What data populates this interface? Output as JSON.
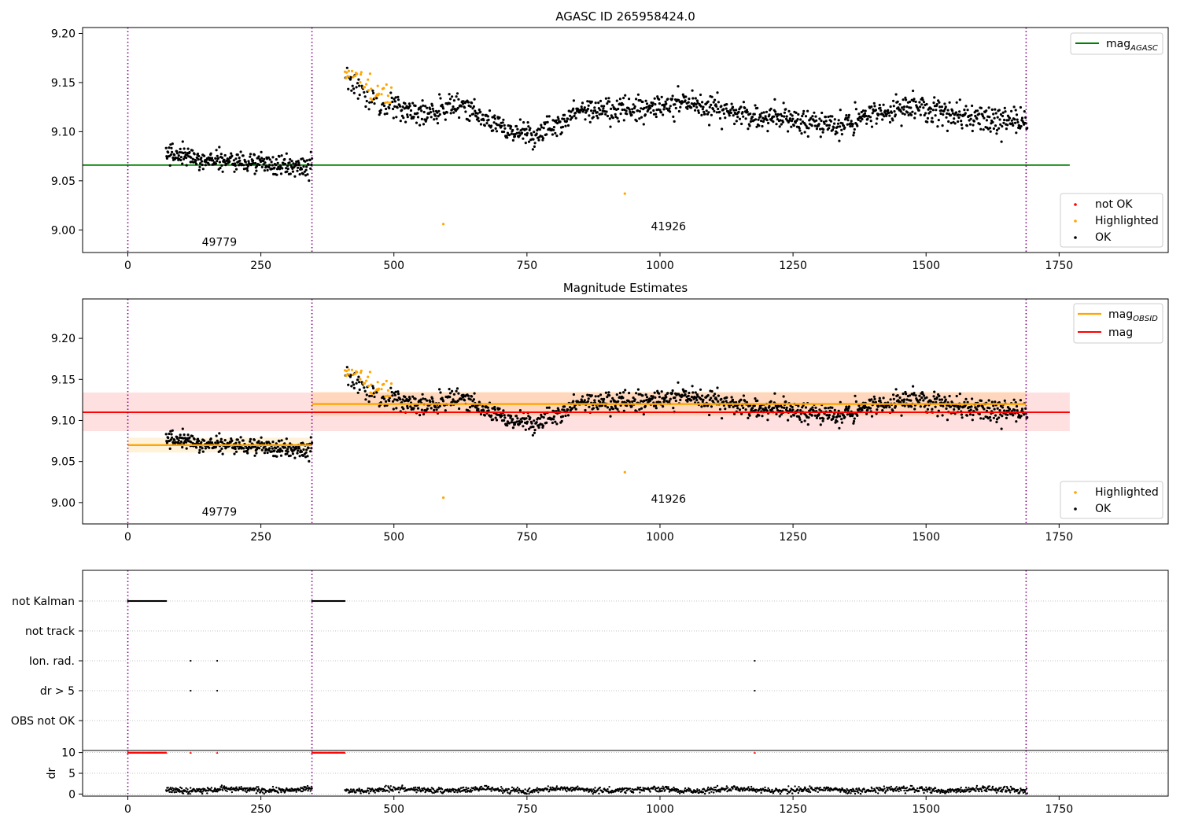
{
  "colors": {
    "ok": "#000000",
    "highlighted": "#ffa500",
    "not_ok": "#ff0000",
    "agasc_line": "#008000",
    "obsid_line": "#ffa500",
    "mag_line": "#ff0000",
    "boundary": "#800080",
    "grid": "#b0b0b0"
  },
  "chart_data": [
    {
      "id": "agasc",
      "type": "scatter",
      "title": "AGASC ID 265958424.0",
      "xlim": [
        -85,
        1955
      ],
      "ylim": [
        8.977,
        9.206
      ],
      "xticks": [
        0,
        250,
        500,
        750,
        1000,
        1250,
        1500,
        1750
      ],
      "yticks": [
        9.0,
        9.05,
        9.1,
        9.15,
        9.2
      ],
      "ytick_labels": [
        "9.00",
        "9.05",
        "9.10",
        "9.15",
        "9.20"
      ],
      "boundaries": [
        0,
        346,
        1688
      ],
      "obsid_labels": [
        {
          "text": "49779",
          "x": 172,
          "y": 8.984
        },
        {
          "text": "41926",
          "x": 1016,
          "y": 9.0
        }
      ],
      "agasc_mag": {
        "value": 9.066,
        "xrange": [
          -85,
          1770
        ]
      },
      "segments": [
        {
          "x0": 72,
          "x1": 346,
          "n": 300,
          "base": [
            9.078,
            9.072,
            9.07,
            9.066,
            9.064
          ],
          "noise": 0.009
        },
        {
          "x0": 408,
          "x1": 1690,
          "n": 1250,
          "base": [
            9.15,
            9.128,
            9.118,
            9.128,
            9.108,
            9.094,
            9.12,
            9.125,
            9.122,
            9.13,
            9.122,
            9.115,
            9.11,
            9.106,
            9.118,
            9.126,
            9.118,
            9.112,
            9.108
          ],
          "noise": 0.011
        }
      ],
      "highlighted_region": {
        "x0": 408,
        "x1": 496,
        "offset": 0.01
      },
      "extra_points": [
        {
          "x": 593,
          "y": 9.006,
          "status": "Highlighted"
        },
        {
          "x": 934,
          "y": 9.037,
          "status": "Highlighted"
        }
      ],
      "legends": [
        {
          "position": "upper-right",
          "entries": [
            {
              "label": "mag",
              "sub": "AGASC",
              "kind": "line",
              "color_key": "agasc_line"
            }
          ]
        },
        {
          "position": "lower-right",
          "entries": [
            {
              "label": "not OK",
              "kind": "dot",
              "color_key": "not_ok"
            },
            {
              "label": "Highlighted",
              "kind": "dot",
              "color_key": "highlighted"
            },
            {
              "label": "OK",
              "kind": "dot",
              "color_key": "ok"
            }
          ]
        }
      ]
    },
    {
      "id": "estimates",
      "type": "scatter",
      "title": "Magnitude Estimates",
      "xlim": [
        -85,
        1955
      ],
      "ylim": [
        8.974,
        9.248
      ],
      "xticks": [
        0,
        250,
        500,
        750,
        1000,
        1250,
        1500,
        1750
      ],
      "yticks": [
        9.0,
        9.05,
        9.1,
        9.15,
        9.2
      ],
      "ytick_labels": [
        "9.00",
        "9.05",
        "9.10",
        "9.15",
        "9.20"
      ],
      "boundaries": [
        0,
        346,
        1688
      ],
      "obsid_labels": [
        {
          "text": "49779",
          "x": 172,
          "y": 8.984
        },
        {
          "text": "41926",
          "x": 1016,
          "y": 9.0
        }
      ],
      "mag": {
        "value": 9.11,
        "band": [
          9.087,
          9.134
        ],
        "xrange": [
          -85,
          1770
        ]
      },
      "mag_obsid": [
        {
          "x0": 0,
          "x1": 346,
          "value": 9.07,
          "band": [
            9.061,
            9.079
          ]
        },
        {
          "x0": 346,
          "x1": 1688,
          "value": 9.12,
          "band": [
            9.105,
            9.135
          ]
        }
      ],
      "legends": [
        {
          "position": "upper-right",
          "entries": [
            {
              "label": "mag",
              "sub": "OBSID",
              "kind": "line",
              "color_key": "obsid_line"
            },
            {
              "label": "mag",
              "kind": "line",
              "color_key": "mag_line"
            }
          ]
        },
        {
          "position": "lower-right",
          "entries": [
            {
              "label": "Highlighted",
              "kind": "dot",
              "color_key": "highlighted"
            },
            {
              "label": "OK",
              "kind": "dot",
              "color_key": "ok"
            }
          ]
        }
      ]
    },
    {
      "id": "flags",
      "type": "scatter",
      "title": "",
      "xlim": [
        -85,
        1955
      ],
      "flag_labels": [
        "not Kalman",
        "not track",
        "Ion. rad.",
        "dr > 5",
        "OBS not OK"
      ],
      "flag_ranges": {
        "not Kalman": [
          [
            0,
            72
          ],
          [
            346,
            408
          ]
        ],
        "not track": [],
        "Ion. rad.": [
          [
            118,
            118
          ],
          [
            168,
            168
          ],
          [
            1178,
            1178
          ]
        ],
        "dr > 5": [
          [
            118,
            118
          ],
          [
            168,
            168
          ],
          [
            1178,
            1178
          ]
        ],
        "OBS not OK": []
      },
      "boundaries": [
        0,
        346,
        1688
      ]
    },
    {
      "id": "dr",
      "type": "scatter",
      "ylabel": "dr",
      "xlim": [
        -85,
        1955
      ],
      "ylim": [
        -0.5,
        10.5
      ],
      "xticks": [
        0,
        250,
        500,
        750,
        1000,
        1250,
        1500,
        1750
      ],
      "yticks": [
        0,
        5,
        10
      ],
      "clipped_value": 10,
      "clipped_ranges": [
        [
          0,
          72
        ],
        [
          346,
          408
        ],
        [
          118,
          118
        ],
        [
          168,
          168
        ],
        [
          1178,
          1178
        ]
      ],
      "boundaries": [
        0,
        346,
        1688
      ]
    }
  ]
}
